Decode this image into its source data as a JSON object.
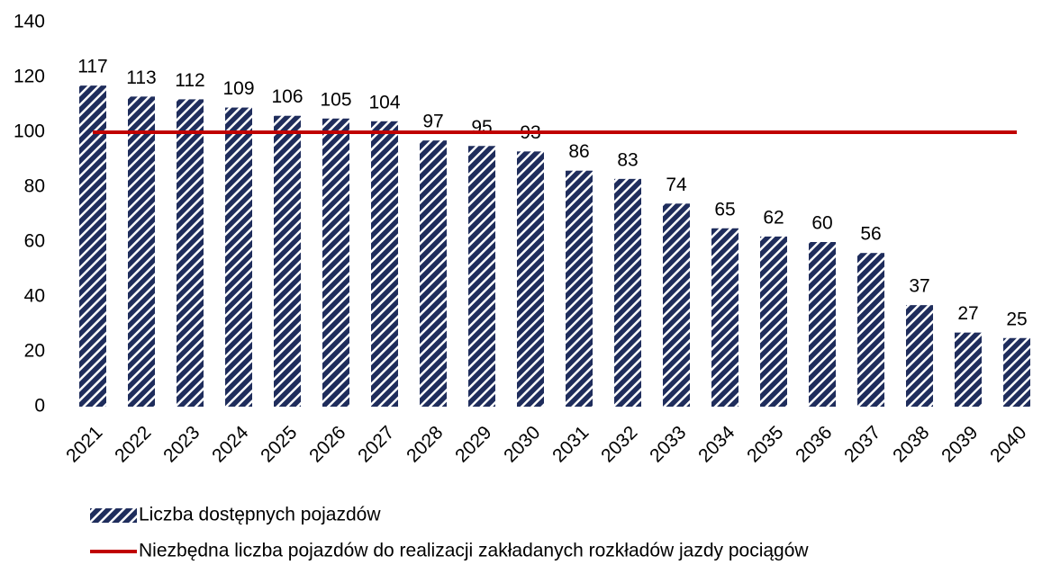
{
  "chart_data": {
    "type": "bar",
    "categories": [
      "2021",
      "2022",
      "2023",
      "2024",
      "2025",
      "2026",
      "2027",
      "2028",
      "2029",
      "2030",
      "2031",
      "2032",
      "2033",
      "2034",
      "2035",
      "2036",
      "2037",
      "2038",
      "2039",
      "2040"
    ],
    "series": [
      {
        "name": "Liczba dostępnych pojazdów",
        "type": "bar",
        "color": "#1f2d5c",
        "pattern": "hatch",
        "values": [
          117,
          113,
          112,
          109,
          106,
          105,
          104,
          97,
          95,
          93,
          86,
          83,
          74,
          65,
          62,
          60,
          56,
          37,
          27,
          25
        ]
      },
      {
        "name": "Niezbędna liczba pojazdów do realizacji zakładanych rozkładów jazdy pociągów",
        "type": "line",
        "color": "#c00000",
        "values": [
          100,
          100,
          100,
          100,
          100,
          100,
          100,
          100,
          100,
          100,
          100,
          100,
          100,
          100,
          100,
          100,
          100,
          100,
          100,
          100
        ]
      }
    ],
    "ylim": [
      0,
      140
    ],
    "yticks": [
      0,
      20,
      40,
      60,
      80,
      100,
      120,
      140
    ],
    "grid": false,
    "legend": "bottom"
  }
}
